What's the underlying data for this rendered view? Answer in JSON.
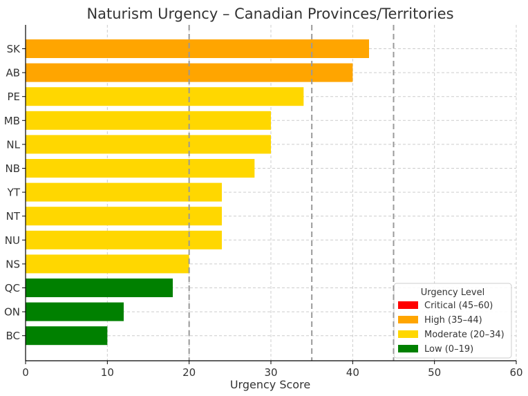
{
  "chart_data": {
    "type": "bar",
    "orientation": "horizontal",
    "title": "Naturism Urgency – Canadian Provinces/Territories",
    "xlabel": "Urgency Score",
    "ylabel": "",
    "xlim": [
      0,
      60
    ],
    "xticks": [
      0,
      10,
      20,
      30,
      40,
      50,
      60
    ],
    "grid": true,
    "categories": [
      "SK",
      "AB",
      "PE",
      "MB",
      "NL",
      "NB",
      "YT",
      "NT",
      "NU",
      "NS",
      "QC",
      "ON",
      "BC"
    ],
    "values": [
      42,
      40,
      34,
      30,
      30,
      28,
      24,
      24,
      24,
      20,
      18,
      12,
      10
    ],
    "bar_levels": [
      "high",
      "high",
      "moderate",
      "moderate",
      "moderate",
      "moderate",
      "moderate",
      "moderate",
      "moderate",
      "moderate",
      "low",
      "low",
      "low"
    ],
    "threshold_lines": [
      20,
      35,
      45
    ],
    "legend": {
      "title": "Urgency Level",
      "placement": "lower-right",
      "entries": [
        {
          "key": "critical",
          "label": "Critical (45–60)",
          "color": "#ff0000"
        },
        {
          "key": "high",
          "label": "High (35–44)",
          "color": "#ffa500"
        },
        {
          "key": "moderate",
          "label": "Moderate (20–34)",
          "color": "#ffd700"
        },
        {
          "key": "low",
          "label": "Low (0–19)",
          "color": "#008000"
        }
      ]
    }
  }
}
